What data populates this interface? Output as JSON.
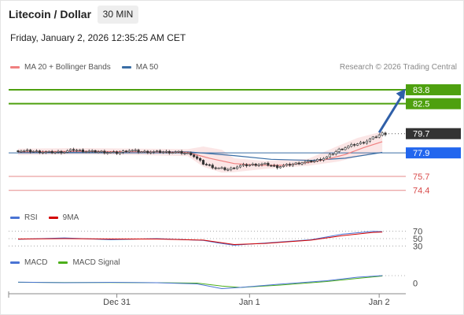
{
  "header": {
    "title": "Litecoin / Dollar",
    "interval": "30 MIN",
    "datetime": "Friday, January 2, 2026 12:35:25 AM CET"
  },
  "legend": {
    "ma20_label": "MA 20 + Bollinger Bands",
    "ma50_label": "MA 50",
    "ma20_color": "#f08080",
    "ma50_color": "#3a6ea5",
    "credit": "Research © 2026 Trading Central"
  },
  "rsi_legend": {
    "rsi_label": "RSI",
    "ma_label": "9MA",
    "rsi_color": "#4a74d4",
    "ma_color": "#d40000"
  },
  "macd_legend": {
    "macd_label": "MACD",
    "signal_label": "MACD Signal",
    "macd_color": "#4a74d4",
    "signal_color": "#4caf1a"
  },
  "chart_data": [
    {
      "type": "line",
      "name": "price",
      "x_ticks": [
        "Dec 31",
        "Jan 1",
        "Jan 2"
      ],
      "x_tick_index": [
        32,
        75,
        117
      ],
      "n_points": 120,
      "ylim": [
        73.2,
        85.2
      ],
      "current_price": 79.7,
      "current_color": "#333333",
      "levels": [
        {
          "label": "83.8",
          "value": 83.8,
          "color": "#4ea00f",
          "style": "solid-box"
        },
        {
          "label": "82.5",
          "value": 82.5,
          "color": "#4ea00f",
          "style": "solid-box"
        },
        {
          "label": "79.7",
          "value": 79.7,
          "color": "#333333",
          "style": "current"
        },
        {
          "label": "77.9",
          "value": 77.9,
          "color": "#2266ee",
          "style": "pivot"
        },
        {
          "label": "75.7",
          "value": 75.7,
          "color": "#d84a4a",
          "style": "text"
        },
        {
          "label": "74.4",
          "value": 74.4,
          "color": "#d84a4a",
          "style": "text"
        }
      ],
      "price_path": [
        [
          0,
          78.1
        ],
        [
          5,
          78.05
        ],
        [
          10,
          77.95
        ],
        [
          15,
          78.0
        ],
        [
          18,
          78.2
        ],
        [
          22,
          78.05
        ],
        [
          27,
          78.0
        ],
        [
          32,
          77.9
        ],
        [
          36,
          78.15
        ],
        [
          40,
          78.0
        ],
        [
          46,
          78.0
        ],
        [
          52,
          77.95
        ],
        [
          56,
          77.8
        ],
        [
          60,
          76.9
        ],
        [
          64,
          76.5
        ],
        [
          68,
          76.35
        ],
        [
          72,
          76.7
        ],
        [
          76,
          76.8
        ],
        [
          80,
          76.85
        ],
        [
          84,
          76.6
        ],
        [
          88,
          76.8
        ],
        [
          92,
          77.0
        ],
        [
          96,
          77.15
        ],
        [
          100,
          77.5
        ],
        [
          104,
          78.2
        ],
        [
          108,
          78.6
        ],
        [
          112,
          78.9
        ],
        [
          115,
          79.3
        ],
        [
          118,
          79.7
        ]
      ],
      "ma20_path": [
        [
          0,
          78.0
        ],
        [
          20,
          78.05
        ],
        [
          40,
          78.0
        ],
        [
          55,
          77.95
        ],
        [
          62,
          77.4
        ],
        [
          70,
          76.9
        ],
        [
          78,
          76.75
        ],
        [
          86,
          76.75
        ],
        [
          94,
          77.0
        ],
        [
          100,
          77.3
        ],
        [
          106,
          77.75
        ],
        [
          112,
          78.4
        ],
        [
          118,
          78.95
        ]
      ],
      "ma50_path": [
        [
          0,
          77.95
        ],
        [
          30,
          78.0
        ],
        [
          55,
          78.0
        ],
        [
          70,
          77.65
        ],
        [
          82,
          77.3
        ],
        [
          95,
          77.2
        ],
        [
          106,
          77.4
        ],
        [
          118,
          77.95
        ]
      ],
      "bb_upper": [
        [
          0,
          78.3
        ],
        [
          20,
          78.35
        ],
        [
          40,
          78.3
        ],
        [
          55,
          78.25
        ],
        [
          60,
          78.5
        ],
        [
          66,
          78.2
        ],
        [
          70,
          77.4
        ],
        [
          80,
          77.15
        ],
        [
          94,
          77.35
        ],
        [
          104,
          78.6
        ],
        [
          110,
          79.3
        ],
        [
          118,
          79.9
        ]
      ],
      "bb_lower": [
        [
          0,
          77.7
        ],
        [
          20,
          77.75
        ],
        [
          40,
          77.7
        ],
        [
          55,
          77.6
        ],
        [
          60,
          76.6
        ],
        [
          66,
          76.05
        ],
        [
          70,
          76.1
        ],
        [
          80,
          76.4
        ],
        [
          94,
          76.7
        ],
        [
          104,
          77.1
        ],
        [
          110,
          77.55
        ],
        [
          118,
          78.0
        ]
      ],
      "arrow": {
        "from": [
          117,
          79.8
        ],
        "to": [
          124,
          83.9
        ]
      }
    },
    {
      "type": "line",
      "name": "RSI",
      "ylim": [
        20,
        80
      ],
      "levels": [
        70,
        50,
        30
      ],
      "level_labels": [
        "70",
        "50",
        "30"
      ],
      "rsi_path": [
        [
          0,
          48
        ],
        [
          15,
          52
        ],
        [
          30,
          47
        ],
        [
          45,
          50
        ],
        [
          60,
          45
        ],
        [
          65,
          38
        ],
        [
          70,
          32
        ],
        [
          80,
          38
        ],
        [
          95,
          47
        ],
        [
          105,
          62
        ],
        [
          115,
          70
        ],
        [
          118,
          69
        ]
      ],
      "ma_path": [
        [
          0,
          49
        ],
        [
          15,
          50
        ],
        [
          30,
          49
        ],
        [
          45,
          49
        ],
        [
          60,
          46
        ],
        [
          70,
          34
        ],
        [
          80,
          37
        ],
        [
          95,
          46
        ],
        [
          105,
          58
        ],
        [
          115,
          67
        ],
        [
          118,
          68
        ]
      ]
    },
    {
      "type": "line",
      "name": "MACD",
      "ylim": [
        -0.5,
        0.7
      ],
      "zero_label": "0",
      "macd_path": [
        [
          0,
          0.05
        ],
        [
          15,
          0.02
        ],
        [
          30,
          0.04
        ],
        [
          45,
          0.02
        ],
        [
          58,
          -0.04
        ],
        [
          66,
          -0.28
        ],
        [
          72,
          -0.22
        ],
        [
          85,
          -0.05
        ],
        [
          100,
          0.12
        ],
        [
          110,
          0.3
        ],
        [
          118,
          0.38
        ]
      ],
      "signal_path": [
        [
          0,
          0.04
        ],
        [
          15,
          0.03
        ],
        [
          30,
          0.03
        ],
        [
          45,
          0.02
        ],
        [
          58,
          0.0
        ],
        [
          66,
          -0.15
        ],
        [
          72,
          -0.22
        ],
        [
          85,
          -0.1
        ],
        [
          100,
          0.08
        ],
        [
          110,
          0.24
        ],
        [
          118,
          0.36
        ]
      ]
    }
  ]
}
